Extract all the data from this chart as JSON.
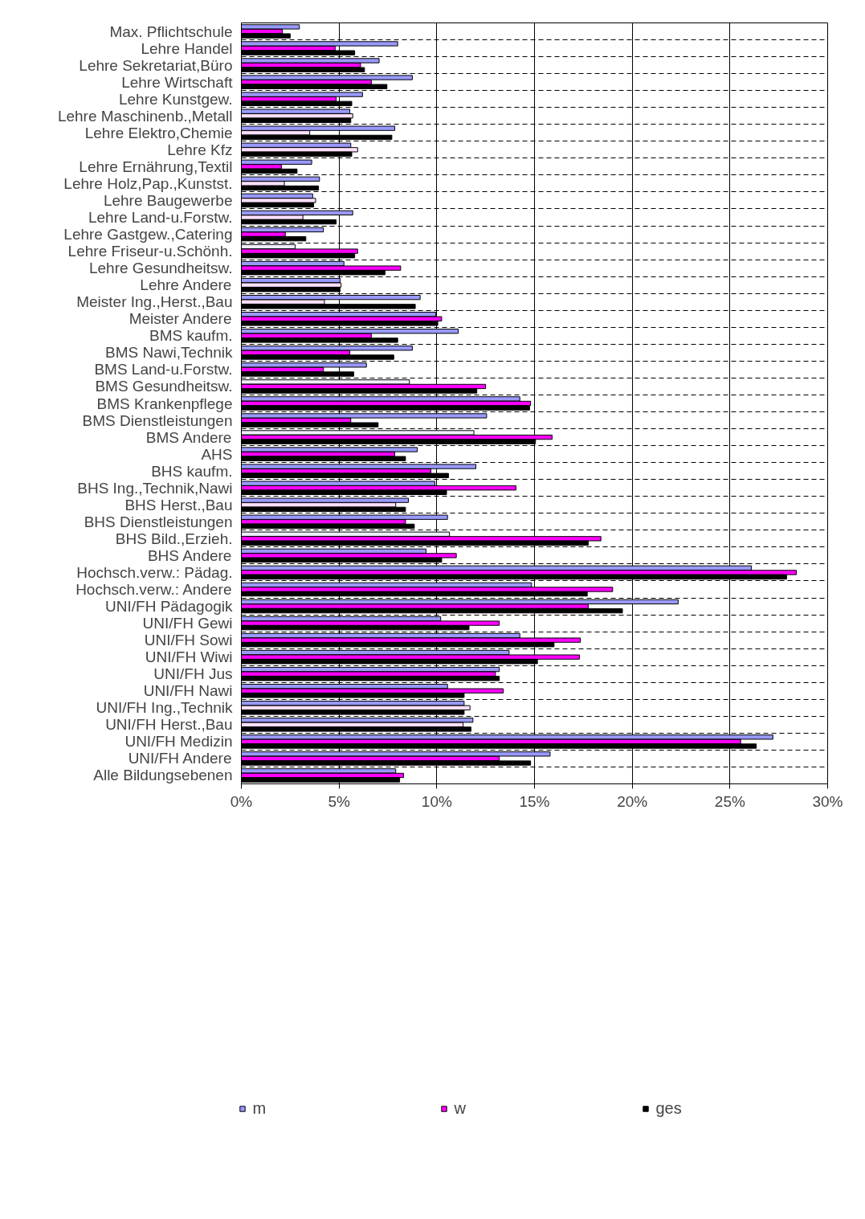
{
  "chart_data": {
    "type": "bar",
    "orientation": "horizontal",
    "categories": [
      "Max. Pflichtschule",
      "Lehre Handel",
      "Lehre Sekretariat,Büro",
      "Lehre Wirtschaft",
      "Lehre Kunstgew.",
      "Lehre Maschinenb.,Metall",
      "Lehre Elektro,Chemie",
      "Lehre Kfz",
      "Lehre Ernährung,Textil",
      "Lehre Holz,Pap.,Kunstst.",
      "Lehre Baugewerbe",
      "Lehre Land-u.Forstw.",
      "Lehre Gastgew.,Catering",
      "Lehre Friseur-u.Schönh.",
      "Lehre Gesundheitsw.",
      "Lehre Andere",
      "Meister Ing.,Herst.,Bau",
      "Meister Andere",
      "BMS kaufm.",
      "BMS Nawi,Technik",
      "BMS Land-u.Forstw.",
      "BMS Gesundheitsw.",
      "BMS Krankenpflege",
      "BMS Dienstleistungen",
      "BMS Andere",
      "AHS",
      "BHS kaufm.",
      "BHS Ing.,Technik,Nawi",
      "BHS Herst.,Bau",
      "BHS Dienstleistungen",
      "BHS Bild.,Erzieh.",
      "BHS Andere",
      "Hochsch.verw.: Pädag.",
      "Hochsch.verw.: Andere",
      "UNI/FH Pädagogik",
      "UNI/FH Gewi",
      "UNI/FH Sowi",
      "UNI/FH Wiwi",
      "UNI/FH Jus",
      "UNI/FH Nawi",
      "UNI/FH Ing.,Technik",
      "UNI/FH Herst.,Bau",
      "UNI/FH Medizin",
      "UNI/FH Andere",
      "Alle Bildungsebenen"
    ],
    "series": [
      {
        "name": "m",
        "color": "#9999ff",
        "values": [
          2.97,
          8.0,
          7.05,
          8.75,
          6.2,
          5.55,
          7.85,
          5.6,
          3.6,
          4.0,
          3.65,
          5.7,
          4.2,
          2.75,
          5.25,
          5.05,
          9.15,
          9.95,
          11.1,
          8.75,
          6.4,
          8.6,
          14.25,
          12.55,
          11.9,
          9.0,
          12.0,
          9.9,
          8.55,
          10.55,
          10.65,
          9.45,
          26.1,
          14.85,
          22.35,
          10.2,
          14.25,
          13.7,
          13.2,
          10.55,
          11.4,
          11.85,
          27.2,
          15.8,
          7.9
        ],
        "colors": [
          "#9999ff",
          "#9999ff",
          "#9999ff",
          "#9999ff",
          "#9999ff",
          "#9999ff",
          "#9999ff",
          "#9999ff",
          "#9999ff",
          "#9999ff",
          "#9999ff",
          "#9999ff",
          "#9999ff",
          "#eeeeff",
          "#9999ff",
          "#9999ff",
          "#9999ff",
          "#9999ff",
          "#9999ff",
          "#9999ff",
          "#9999ff",
          "#eeeeff",
          "#9999ff",
          "#9999ff",
          "#eeeeff",
          "#9999ff",
          "#9999ff",
          "#9999ff",
          "#9999ff",
          "#9999ff",
          "#eeeeff",
          "#9999ff",
          "#9999ff",
          "#9999ff",
          "#9999ff",
          "#9999ff",
          "#9999ff",
          "#9999ff",
          "#9999ff",
          "#9999ff",
          "#9999ff",
          "#9999ff",
          "#9999ff",
          "#9999ff",
          "#9999ff"
        ]
      },
      {
        "name": "w",
        "color": "#ff00ff",
        "values": [
          2.1,
          4.8,
          6.1,
          6.65,
          4.85,
          5.7,
          3.5,
          5.95,
          2.05,
          2.2,
          3.8,
          3.15,
          2.25,
          5.95,
          8.15,
          5.1,
          4.25,
          10.25,
          6.65,
          5.55,
          4.2,
          12.5,
          14.8,
          5.6,
          15.9,
          7.85,
          9.7,
          14.05,
          7.9,
          8.4,
          18.4,
          11.0,
          28.4,
          19.0,
          17.75,
          13.2,
          17.35,
          17.3,
          13.0,
          13.4,
          11.7,
          11.35,
          25.55,
          13.2,
          8.3
        ],
        "colors": [
          "#ff00ff",
          "#ff00ff",
          "#ff00ff",
          "#ff00ff",
          "#ff00ff",
          "#ffe0ff",
          "#ffe0ff",
          "#ffe0ff",
          "#ff00ff",
          "#ffe0ff",
          "#ffe0ff",
          "#ffe0ff",
          "#ff00ff",
          "#ff00ff",
          "#ff00ff",
          "#ffe0ff",
          "#ffe0ff",
          "#ff00ff",
          "#ff00ff",
          "#ff00ff",
          "#ff00ff",
          "#ff00ff",
          "#ff00ff",
          "#ff00ff",
          "#ff00ff",
          "#ff00ff",
          "#ff00ff",
          "#ff00ff",
          "#ffe0ff",
          "#ff00ff",
          "#ff00ff",
          "#ff00ff",
          "#ff00ff",
          "#ff00ff",
          "#ff00ff",
          "#ff00ff",
          "#ff00ff",
          "#ff00ff",
          "#ff00ff",
          "#ff00ff",
          "#ffe0ff",
          "#ffe0ff",
          "#ff00ff",
          "#ff00ff",
          "#ff00ff"
        ]
      },
      {
        "name": "ges",
        "color": "#000000",
        "values": [
          2.5,
          5.8,
          6.3,
          7.45,
          5.65,
          5.6,
          7.7,
          5.65,
          2.85,
          3.95,
          3.7,
          4.85,
          3.3,
          5.8,
          7.35,
          5.05,
          8.9,
          10.05,
          8.0,
          7.8,
          5.75,
          12.05,
          14.75,
          7.0,
          15.05,
          8.4,
          10.6,
          10.5,
          8.4,
          8.85,
          17.75,
          10.25,
          27.9,
          17.7,
          19.5,
          11.65,
          16.0,
          15.15,
          13.2,
          11.4,
          11.4,
          11.75,
          26.35,
          14.8,
          8.1
        ]
      }
    ],
    "xlim": [
      0,
      30
    ],
    "xticks": [
      {
        "value": 0,
        "label": "0%"
      },
      {
        "value": 5,
        "label": "5%"
      },
      {
        "value": 10,
        "label": "10%"
      },
      {
        "value": 15,
        "label": "15%"
      },
      {
        "value": 20,
        "label": "20%"
      },
      {
        "value": 25,
        "label": "25%"
      },
      {
        "value": 30,
        "label": "30%"
      }
    ],
    "grid": true,
    "legend": "bottom"
  }
}
